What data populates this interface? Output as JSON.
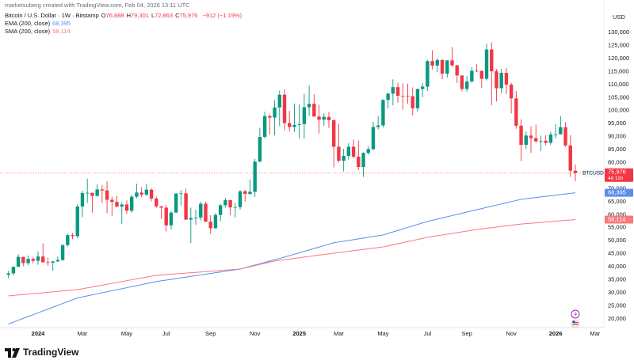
{
  "header": {
    "credit": "marketsuberg created with TradingView.com, Feb 04, 2026 13:11 UTC",
    "symbol": "Bitcoin / U.S. Dollar · 1W · Bitstamp",
    "ohlc": [
      {
        "key": "O",
        "value": "76,888"
      },
      {
        "key": "H",
        "value": "79,301"
      },
      {
        "key": "L",
        "value": "72,863"
      },
      {
        "key": "C",
        "value": "75,976"
      }
    ],
    "change": "−912 (−1.19%)"
  },
  "currency": "USD",
  "brand": "TradingView",
  "chart_data": {
    "type": "candlestick",
    "categories": [
      null,
      null,
      null,
      null,
      null,
      null,
      "2024",
      null,
      null,
      null,
      null,
      null,
      null,
      null,
      null,
      "Mar",
      null,
      null,
      null,
      null,
      null,
      null,
      null,
      null,
      "May",
      null,
      null,
      null,
      null,
      null,
      null,
      null,
      "Jul",
      null,
      null,
      null,
      null,
      null,
      null,
      null,
      null,
      "Sep",
      null,
      null,
      null,
      null,
      null,
      null,
      null,
      null,
      "Nov",
      null,
      null,
      null,
      null,
      null,
      null,
      null,
      null,
      "2025",
      null,
      null,
      null,
      null,
      null,
      null,
      null,
      "Mar",
      null,
      null,
      null,
      null,
      null,
      null,
      null,
      null,
      "May",
      null,
      null,
      null,
      null,
      null,
      null,
      null,
      null,
      "Jul",
      null,
      null,
      null,
      null,
      null,
      null,
      null,
      "Sep",
      null,
      null,
      null,
      null,
      null,
      null,
      null,
      null,
      "Nov",
      null,
      null,
      null,
      null,
      null,
      null,
      null,
      null,
      "2026",
      null,
      null,
      null,
      null,
      null,
      null,
      null,
      "Mar",
      null
    ],
    "open": [
      36900,
      37450,
      39970,
      43780,
      41400,
      42990,
      42280,
      43920,
      41730,
      41580,
      42030,
      42580,
      48300,
      52130,
      51730,
      63130,
      68300,
      68400,
      67200,
      69700,
      69300,
      65700,
      64900,
      63100,
      63900,
      61500,
      66900,
      68500,
      67700,
      69600,
      66200,
      63200,
      62700,
      55900,
      60800,
      68100,
      68200,
      58100,
      58700,
      58900,
      64200,
      57300,
      54800,
      59900,
      63600,
      65600,
      62800,
      62900,
      69000,
      68000,
      68800,
      80400,
      89900,
      97900,
      97300,
      101200,
      106100,
      95200,
      93700,
      94500,
      94800,
      101300,
      102600,
      97700,
      96500,
      97600,
      96300,
      86100,
      80700,
      82600,
      86100,
      82300,
      78300,
      83700,
      85200,
      93700,
      94300,
      104100,
      106500,
      109000,
      105700,
      105600,
      105500,
      100900,
      108300,
      109200,
      119000,
      117300,
      119400,
      114200,
      119300,
      117400,
      113500,
      108300,
      111200,
      115300,
      115200,
      112200,
      123500,
      115100,
      108600,
      114500,
      110000,
      104700,
      94200,
      86800,
      90400,
      89400,
      88200,
      88400,
      87600,
      90800,
      90900,
      93600,
      86600,
      76888,
      null,
      null,
      null,
      null,
      null
    ],
    "high": [
      38420,
      39980,
      44700,
      43780,
      44300,
      43600,
      45900,
      49000,
      43570,
      42250,
      43880,
      48600,
      52800,
      52950,
      64000,
      69200,
      73800,
      68400,
      71700,
      71300,
      72800,
      66900,
      67200,
      64700,
      65500,
      67700,
      71900,
      70600,
      71900,
      70200,
      66900,
      63400,
      63800,
      61400,
      68300,
      69400,
      70000,
      62700,
      62000,
      65000,
      64900,
      59800,
      60600,
      64100,
      66500,
      65600,
      64400,
      69400,
      69500,
      73600,
      81500,
      93400,
      99600,
      98600,
      104000,
      107700,
      108300,
      99900,
      102700,
      102500,
      106400,
      109600,
      106400,
      102300,
      98900,
      99500,
      96500,
      95000,
      85300,
      87500,
      88800,
      88500,
      84000,
      86400,
      95700,
      97900,
      104300,
      107000,
      112000,
      110700,
      110500,
      110300,
      108900,
      108500,
      110500,
      119500,
      123200,
      120200,
      119800,
      119300,
      124400,
      117600,
      113500,
      113400,
      116700,
      117900,
      115500,
      125700,
      126200,
      116000,
      116000,
      116400,
      110700,
      107500,
      96600,
      92000,
      94000,
      94600,
      90400,
      90600,
      91900,
      94800,
      97900,
      95500,
      90500,
      79301,
      null,
      null,
      null,
      null,
      null
    ],
    "low": [
      35640,
      36700,
      39970,
      40200,
      40550,
      41300,
      40750,
      41500,
      40400,
      38500,
      41880,
      42250,
      47700,
      50600,
      50900,
      59000,
      64500,
      60800,
      66900,
      64500,
      60600,
      59600,
      62800,
      56500,
      60200,
      60700,
      66300,
      66700,
      67200,
      65100,
      62600,
      58400,
      53500,
      54300,
      60800,
      63500,
      58000,
      49100,
      56100,
      57800,
      57200,
      52600,
      54600,
      57500,
      62700,
      59800,
      58900,
      62000,
      65000,
      67500,
      66800,
      80100,
      89300,
      90800,
      90500,
      94200,
      92300,
      92000,
      91800,
      89300,
      89300,
      98000,
      97800,
      91200,
      94100,
      93300,
      78200,
      80000,
      76600,
      81200,
      81600,
      77100,
      74500,
      83100,
      84700,
      92800,
      93500,
      100800,
      102000,
      103000,
      100400,
      102700,
      98200,
      99600,
      105100,
      107500,
      115800,
      114700,
      112000,
      112700,
      116800,
      110600,
      107400,
      107300,
      110700,
      114800,
      108700,
      111600,
      102000,
      103500,
      106700,
      106300,
      98900,
      93000,
      80600,
      85200,
      83800,
      87600,
      84400,
      86600,
      86900,
      89300,
      90800,
      86000,
      74500,
      72863,
      null,
      null,
      null,
      null,
      null
    ],
    "close": [
      37450,
      39970,
      43780,
      41400,
      42990,
      42280,
      43920,
      41730,
      41580,
      42030,
      42580,
      48300,
      52130,
      51730,
      63130,
      68300,
      68400,
      67200,
      69700,
      69300,
      65700,
      64900,
      63100,
      63900,
      61500,
      66900,
      68500,
      67700,
      69600,
      66200,
      63200,
      62700,
      55900,
      60800,
      68100,
      68200,
      58100,
      58700,
      58900,
      64200,
      57300,
      54800,
      59900,
      63600,
      65600,
      62800,
      62900,
      69000,
      68000,
      68800,
      80400,
      89900,
      97900,
      97300,
      101200,
      106100,
      95200,
      93700,
      94500,
      94800,
      101300,
      102600,
      97700,
      96500,
      97600,
      96300,
      86100,
      80700,
      82600,
      86100,
      82300,
      78300,
      83700,
      85200,
      93700,
      94300,
      104100,
      106500,
      109000,
      105700,
      105600,
      105500,
      100900,
      108300,
      109200,
      119000,
      117300,
      119400,
      114200,
      119300,
      117400,
      113500,
      108300,
      111200,
      115300,
      115200,
      112200,
      123500,
      115100,
      108600,
      114500,
      110000,
      104700,
      94200,
      86800,
      90400,
      89400,
      88200,
      88400,
      87600,
      90800,
      90900,
      93600,
      86600,
      76900,
      75976,
      null,
      null,
      null,
      null,
      null
    ],
    "up_color": "#089981",
    "down_color": "#f23645",
    "last_price": {
      "symbol": "BTCUSD",
      "value_label": "75,976",
      "countdown": "4d 11h"
    },
    "series": [
      {
        "name": "EMA (200, close)",
        "color": "#5b8def",
        "last_label": "68,395",
        "values": [
          18000,
          18710,
          19430,
          20140,
          20860,
          21570,
          22290,
          23000,
          23710,
          24430,
          25140,
          25860,
          26570,
          27290,
          28000,
          28390,
          28790,
          29180,
          29580,
          29970,
          30360,
          30760,
          31150,
          31540,
          31940,
          32330,
          32730,
          33120,
          33510,
          33910,
          34300,
          34580,
          34860,
          35150,
          35430,
          35710,
          36000,
          36280,
          36560,
          36840,
          37120,
          37410,
          37690,
          37970,
          38250,
          38540,
          38820,
          39100,
          39610,
          40120,
          40630,
          41140,
          41660,
          42170,
          42680,
          43190,
          43700,
          44250,
          44800,
          45350,
          45900,
          46450,
          47000,
          47550,
          48100,
          48650,
          49200,
          49500,
          49800,
          50100,
          50400,
          50700,
          51000,
          51300,
          51600,
          51900,
          52200,
          52780,
          53360,
          53930,
          54510,
          55090,
          55670,
          56240,
          56820,
          57400,
          57850,
          58300,
          58750,
          59200,
          59650,
          60100,
          60550,
          61000,
          61450,
          61900,
          62340,
          62790,
          63230,
          63680,
          64120,
          64570,
          65010,
          65460,
          65900,
          66130,
          66350,
          66580,
          66810,
          67030,
          67260,
          67490,
          67710,
          67940,
          68170,
          68395,
          null,
          null,
          null,
          null,
          null
        ]
      },
      {
        "name": "SMA (200, close)",
        "color": "#f7787d",
        "last_label": "58,114",
        "values": [
          28800,
          28970,
          29140,
          29310,
          29490,
          29660,
          29830,
          30000,
          30170,
          30340,
          30510,
          30690,
          30860,
          31030,
          31200,
          31540,
          31890,
          32230,
          32580,
          32920,
          33260,
          33610,
          33950,
          34290,
          34640,
          34980,
          35330,
          35670,
          36010,
          36360,
          36700,
          36840,
          36980,
          37120,
          37260,
          37410,
          37550,
          37690,
          37830,
          37970,
          38110,
          38250,
          38390,
          38540,
          38680,
          38820,
          38960,
          39100,
          39540,
          39990,
          40430,
          40870,
          41310,
          41760,
          42200,
          42450,
          42700,
          42950,
          43200,
          43450,
          43700,
          43950,
          44200,
          44450,
          44700,
          44950,
          45200,
          45440,
          45680,
          45920,
          46160,
          46400,
          46640,
          46880,
          47120,
          47360,
          47600,
          48010,
          48420,
          48830,
          49240,
          49660,
          50070,
          50480,
          50890,
          51300,
          51600,
          51900,
          52200,
          52500,
          52800,
          53100,
          53400,
          53700,
          54000,
          54300,
          54530,
          54770,
          55000,
          55230,
          55470,
          55700,
          55930,
          56170,
          56400,
          56560,
          56710,
          56870,
          57020,
          57180,
          57330,
          57490,
          57650,
          57800,
          57960,
          58114,
          null,
          null,
          null,
          null,
          null
        ]
      }
    ],
    "ylim": [
      16600,
      142500
    ],
    "yticks": [
      {
        "value": 20000,
        "label": "20,000"
      },
      {
        "value": 25000,
        "label": "25,000"
      },
      {
        "value": 30000,
        "label": "30,000"
      },
      {
        "value": 35000,
        "label": "35,000"
      },
      {
        "value": 40000,
        "label": "40,000"
      },
      {
        "value": 45000,
        "label": "45,000"
      },
      {
        "value": 50000,
        "label": "50,000"
      },
      {
        "value": 55000,
        "label": "55,000"
      },
      {
        "value": 60000,
        "label": "60,000"
      },
      {
        "value": 65000,
        "label": "65,000"
      },
      {
        "value": 70000,
        "label": "70,000"
      },
      {
        "value": 75000,
        "label": "75,000"
      },
      {
        "value": 80000,
        "label": "80,000"
      },
      {
        "value": 85000,
        "label": "85,000"
      },
      {
        "value": 90000,
        "label": "90,000"
      },
      {
        "value": 95000,
        "label": "95,000"
      },
      {
        "value": 100000,
        "label": "100,000"
      },
      {
        "value": 105000,
        "label": "105,000"
      },
      {
        "value": 110000,
        "label": "110,000"
      },
      {
        "value": 115000,
        "label": "115,000"
      },
      {
        "value": 120000,
        "label": "120,000"
      },
      {
        "value": 125000,
        "label": "125,000"
      },
      {
        "value": 130000,
        "label": "130,000"
      }
    ],
    "grid": false
  }
}
